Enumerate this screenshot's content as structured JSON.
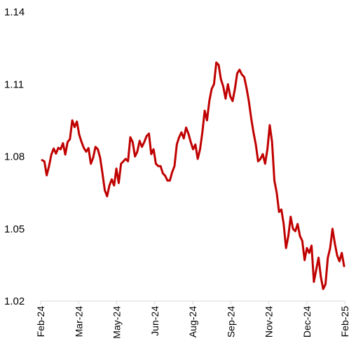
{
  "chart_data": {
    "type": "line",
    "title": "",
    "xlabel": "",
    "ylabel": "",
    "ylim": [
      1.02,
      1.14
    ],
    "y_ticks": [
      "1.02",
      "1.05",
      "1.08",
      "1.11",
      "1.14"
    ],
    "x_ticks": [
      "Feb-24",
      "Mar-24",
      "May-24",
      "Jun-24",
      "Aug-24",
      "Sep-24",
      "Nov-24",
      "Dec-24",
      "Feb-25"
    ],
    "grid": false,
    "legend": "none",
    "line_color": "#C00000",
    "series": [
      {
        "values": [
          1.0785,
          1.078,
          1.0722,
          1.076,
          1.0808,
          1.0833,
          1.0812,
          1.0836,
          1.083,
          1.0855,
          1.0808,
          1.086,
          1.0872,
          1.095,
          1.0922,
          1.0945,
          1.089,
          1.086,
          1.0835,
          1.082,
          1.0835,
          1.077,
          1.0795,
          1.084,
          1.083,
          1.0795,
          1.073,
          1.066,
          1.0635,
          1.068,
          1.0705,
          1.068,
          1.075,
          1.069,
          1.077,
          1.078,
          1.079,
          1.078,
          1.088,
          1.086,
          1.08,
          1.082,
          1.0865,
          1.084,
          1.086,
          1.0885,
          1.0895,
          1.081,
          1.083,
          1.077,
          1.076,
          1.076,
          1.073,
          1.072,
          1.07,
          1.07,
          1.0735,
          1.076,
          1.085,
          1.088,
          1.09,
          1.0875,
          1.092,
          1.0895,
          1.086,
          1.083,
          1.085,
          1.079,
          1.083,
          1.09,
          1.099,
          1.095,
          1.103,
          1.108,
          1.11,
          1.119,
          1.118,
          1.112,
          1.109,
          1.104,
          1.11,
          1.105,
          1.103,
          1.108,
          1.1145,
          1.116,
          1.114,
          1.113,
          1.1085,
          1.103,
          1.096,
          1.09,
          1.085,
          1.078,
          1.079,
          1.081,
          1.077,
          1.083,
          1.093,
          1.086,
          1.07,
          1.065,
          1.057,
          1.058,
          1.052,
          1.042,
          1.047,
          1.055,
          1.05,
          1.049,
          1.052,
          1.047,
          1.045,
          1.037,
          1.042,
          1.04,
          1.043,
          1.028,
          1.033,
          1.038,
          1.03,
          1.025,
          1.027,
          1.038,
          1.042,
          1.05,
          1.044,
          1.039,
          1.0365,
          1.04,
          1.0345
        ]
      }
    ]
  }
}
